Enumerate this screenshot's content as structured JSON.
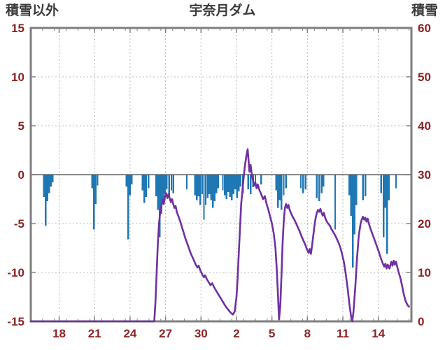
{
  "header": {
    "left_label": "積雪以外",
    "title": "宇奈月ダム",
    "right_label": "積雪"
  },
  "chart_data": {
    "type": "combo",
    "title": "宇奈月ダム",
    "legend": "none",
    "grid": true,
    "x_axis": {
      "min": 0,
      "max": 32.2,
      "tick_positions": [
        2.4,
        5.4,
        8.4,
        11.4,
        14.4,
        17.4,
        20.4,
        23.4,
        26.4,
        29.4
      ],
      "tick_labels": [
        "18",
        "21",
        "24",
        "27",
        "30",
        "2",
        "5",
        "8",
        "11",
        "14"
      ]
    },
    "left_axis": {
      "label": "積雪以外",
      "min": -15,
      "max": 15,
      "ticks": [
        15,
        10,
        5,
        0,
        -5,
        -10,
        -15
      ],
      "grid_values": [
        10,
        5,
        -5,
        -10
      ]
    },
    "right_axis": {
      "label": "積雪",
      "min": 0,
      "max": 60,
      "ticks": [
        60,
        50,
        40,
        30,
        20,
        10,
        0
      ]
    },
    "colors": {
      "bar": "#1f77b4",
      "line": "#7030a0",
      "tick_text": "#8b2323",
      "heading_text": "#3a3a3a",
      "border": "#7f7f7f",
      "grid": "#b8b8b8",
      "zero_line": "#8a8a8a",
      "background": "#ffffff"
    },
    "series": [
      {
        "name": "積雪以外",
        "type": "bar",
        "axis": "left",
        "color": "#1f77b4",
        "points": [
          [
            1.1,
            -2.3
          ],
          [
            1.25,
            -5.2
          ],
          [
            1.4,
            -2.7
          ],
          [
            1.55,
            -1.9
          ],
          [
            1.7,
            -1.2
          ],
          [
            1.85,
            -0.8
          ],
          [
            5.2,
            -1.4
          ],
          [
            5.35,
            -5.6
          ],
          [
            5.5,
            -3.0
          ],
          [
            5.65,
            -1.1
          ],
          [
            8.1,
            -1.2
          ],
          [
            8.25,
            -6.6
          ],
          [
            8.4,
            -2.1
          ],
          [
            8.55,
            -1.0
          ],
          [
            9.45,
            -1.6
          ],
          [
            9.6,
            -2.9
          ],
          [
            9.75,
            -2.3
          ],
          [
            9.95,
            -1.4
          ],
          [
            10.6,
            -2.2
          ],
          [
            10.75,
            -3.6
          ],
          [
            10.9,
            -6.4
          ],
          [
            11.05,
            -4.0
          ],
          [
            11.2,
            -2.6
          ],
          [
            11.35,
            -2.0
          ],
          [
            11.5,
            -1.5
          ],
          [
            11.7,
            -2.3
          ],
          [
            11.9,
            -1.6
          ],
          [
            12.05,
            -1.9
          ],
          [
            13.2,
            -1.5
          ],
          [
            13.9,
            -2.1
          ],
          [
            14.05,
            -2.6
          ],
          [
            14.2,
            -2.2
          ],
          [
            14.35,
            -3.1
          ],
          [
            14.5,
            -2.0
          ],
          [
            14.65,
            -4.6
          ],
          [
            14.8,
            -3.1
          ],
          [
            14.95,
            -2.4
          ],
          [
            15.1,
            -2.0
          ],
          [
            15.25,
            -2.6
          ],
          [
            15.4,
            -3.4
          ],
          [
            15.55,
            -2.7
          ],
          [
            15.7,
            -1.9
          ],
          [
            15.85,
            -1.4
          ],
          [
            16.25,
            -1.6
          ],
          [
            16.4,
            -2.1
          ],
          [
            16.55,
            -2.5
          ],
          [
            16.7,
            -1.8
          ],
          [
            16.85,
            -2.3
          ],
          [
            17.0,
            -2.6
          ],
          [
            17.15,
            -2.0
          ],
          [
            17.3,
            -1.5
          ],
          [
            17.45,
            -2.4
          ],
          [
            17.6,
            -1.7
          ],
          [
            17.75,
            -1.2
          ],
          [
            17.95,
            -1.9
          ],
          [
            18.4,
            -1.5
          ],
          [
            18.6,
            -2.0
          ],
          [
            18.8,
            -1.3
          ],
          [
            19.0,
            -0.9
          ],
          [
            19.5,
            -1.0
          ],
          [
            20.75,
            -1.6
          ],
          [
            20.9,
            -3.4
          ],
          [
            21.05,
            -2.6
          ],
          [
            21.2,
            -3.6
          ],
          [
            21.4,
            -2.1
          ],
          [
            21.6,
            -1.4
          ],
          [
            22.85,
            -1.4
          ],
          [
            23.05,
            -1.9
          ],
          [
            23.25,
            -1.5
          ],
          [
            24.2,
            -2.4
          ],
          [
            24.4,
            -2.7
          ],
          [
            24.6,
            -1.9
          ],
          [
            24.75,
            -1.2
          ],
          [
            25.75,
            -5.6
          ],
          [
            26.95,
            -2.1
          ],
          [
            27.1,
            -4.2
          ],
          [
            27.25,
            -9.5
          ],
          [
            27.4,
            -6.1
          ],
          [
            27.55,
            -3.1
          ],
          [
            28.1,
            -2.6
          ],
          [
            28.3,
            -2.2
          ],
          [
            29.65,
            -1.9
          ],
          [
            29.85,
            -6.4
          ],
          [
            30.0,
            -3.4
          ],
          [
            30.15,
            -8.1
          ],
          [
            30.3,
            -2.6
          ],
          [
            30.9,
            -1.4
          ]
        ]
      },
      {
        "name": "積雪",
        "type": "line",
        "axis": "right",
        "color": "#7030a0",
        "points": [
          [
            0,
            0
          ],
          [
            10.45,
            0
          ],
          [
            10.55,
            4
          ],
          [
            10.65,
            10
          ],
          [
            10.75,
            16
          ],
          [
            10.85,
            20
          ],
          [
            10.95,
            22.4
          ],
          [
            11.05,
            23.6
          ],
          [
            11.15,
            24.8
          ],
          [
            11.25,
            24
          ],
          [
            11.35,
            25.6
          ],
          [
            11.45,
            26.2
          ],
          [
            11.55,
            25.2
          ],
          [
            11.65,
            26
          ],
          [
            11.75,
            25.2
          ],
          [
            11.85,
            24.4
          ],
          [
            11.95,
            25
          ],
          [
            12.05,
            24
          ],
          [
            12.15,
            23.2
          ],
          [
            12.25,
            23.6
          ],
          [
            12.35,
            22.4
          ],
          [
            12.5,
            21.4
          ],
          [
            12.65,
            20.4
          ],
          [
            12.8,
            19.2
          ],
          [
            12.95,
            18
          ],
          [
            13.1,
            16.8
          ],
          [
            13.25,
            15.8
          ],
          [
            13.4,
            14.8
          ],
          [
            13.55,
            13.8
          ],
          [
            13.7,
            13
          ],
          [
            13.85,
            12.2
          ],
          [
            13.95,
            11.6
          ],
          [
            14.1,
            11
          ],
          [
            14.2,
            11.4
          ],
          [
            14.35,
            10.4
          ],
          [
            14.5,
            9.6
          ],
          [
            14.65,
            9
          ],
          [
            14.75,
            9.4
          ],
          [
            14.9,
            8.6
          ],
          [
            15.05,
            8
          ],
          [
            15.2,
            7.4
          ],
          [
            15.35,
            7.8
          ],
          [
            15.5,
            7
          ],
          [
            15.7,
            6.2
          ],
          [
            15.9,
            5.4
          ],
          [
            16.1,
            4.6
          ],
          [
            16.3,
            3.8
          ],
          [
            16.5,
            3
          ],
          [
            16.7,
            2.4
          ],
          [
            16.9,
            1.8
          ],
          [
            17.1,
            1.4
          ],
          [
            17.25,
            2
          ],
          [
            17.4,
            5
          ],
          [
            17.5,
            9
          ],
          [
            17.6,
            14
          ],
          [
            17.7,
            19
          ],
          [
            17.8,
            24
          ],
          [
            17.95,
            28
          ],
          [
            18.1,
            31.6
          ],
          [
            18.25,
            34
          ],
          [
            18.35,
            35.2
          ],
          [
            18.45,
            32
          ],
          [
            18.5,
            30.6
          ],
          [
            18.6,
            32
          ],
          [
            18.7,
            30
          ],
          [
            18.8,
            28.8
          ],
          [
            18.9,
            27.8
          ],
          [
            19.0,
            28.4
          ],
          [
            19.1,
            27.2
          ],
          [
            19.2,
            28
          ],
          [
            19.35,
            26.8
          ],
          [
            19.5,
            26
          ],
          [
            19.65,
            25
          ],
          [
            19.8,
            25.6
          ],
          [
            19.95,
            24
          ],
          [
            20.1,
            22.8
          ],
          [
            20.25,
            21.4
          ],
          [
            20.4,
            20
          ],
          [
            20.55,
            18
          ],
          [
            20.7,
            15
          ],
          [
            20.8,
            11
          ],
          [
            20.9,
            6
          ],
          [
            21.0,
            0.4
          ],
          [
            21.1,
            3
          ],
          [
            21.2,
            9
          ],
          [
            21.3,
            16
          ],
          [
            21.4,
            20.4
          ],
          [
            21.5,
            23.2
          ],
          [
            21.6,
            24
          ],
          [
            21.7,
            23.2
          ],
          [
            21.8,
            23.8
          ],
          [
            21.9,
            22.8
          ],
          [
            22.0,
            22.2
          ],
          [
            22.15,
            21.4
          ],
          [
            22.3,
            20.8
          ],
          [
            22.45,
            20
          ],
          [
            22.6,
            19.2
          ],
          [
            22.75,
            18.4
          ],
          [
            22.9,
            17.4
          ],
          [
            23.05,
            16.6
          ],
          [
            23.2,
            15.8
          ],
          [
            23.35,
            14.8
          ],
          [
            23.5,
            14
          ],
          [
            23.6,
            14.8
          ],
          [
            23.7,
            13.8
          ],
          [
            23.8,
            15.6
          ],
          [
            23.9,
            17.6
          ],
          [
            24.0,
            19.6
          ],
          [
            24.1,
            21.2
          ],
          [
            24.2,
            22.2
          ],
          [
            24.3,
            22.8
          ],
          [
            24.4,
            22.4
          ],
          [
            24.5,
            23
          ],
          [
            24.6,
            22.2
          ],
          [
            24.7,
            21.6
          ],
          [
            24.8,
            22.2
          ],
          [
            24.9,
            21.2
          ],
          [
            25.0,
            20.6
          ],
          [
            25.15,
            20
          ],
          [
            25.3,
            19.6
          ],
          [
            25.45,
            18.8
          ],
          [
            25.6,
            18.2
          ],
          [
            25.75,
            17.6
          ],
          [
            25.9,
            16.8
          ],
          [
            26.05,
            16
          ],
          [
            26.2,
            15
          ],
          [
            26.35,
            13.6
          ],
          [
            26.5,
            12
          ],
          [
            26.65,
            9.6
          ],
          [
            26.8,
            6.8
          ],
          [
            26.95,
            3.6
          ],
          [
            27.1,
            1
          ],
          [
            27.2,
            0
          ],
          [
            27.3,
            2
          ],
          [
            27.45,
            7
          ],
          [
            27.6,
            13
          ],
          [
            27.75,
            17.6
          ],
          [
            27.9,
            20
          ],
          [
            28.0,
            20.8
          ],
          [
            28.1,
            21.4
          ],
          [
            28.2,
            20.8
          ],
          [
            28.3,
            21.2
          ],
          [
            28.4,
            20.4
          ],
          [
            28.5,
            21
          ],
          [
            28.6,
            20
          ],
          [
            28.7,
            19.2
          ],
          [
            28.85,
            18.2
          ],
          [
            29.0,
            17.2
          ],
          [
            29.15,
            16.2
          ],
          [
            29.3,
            15.2
          ],
          [
            29.45,
            14.2
          ],
          [
            29.6,
            13
          ],
          [
            29.75,
            12
          ],
          [
            29.9,
            11.2
          ],
          [
            30.0,
            11.8
          ],
          [
            30.1,
            10.8
          ],
          [
            30.2,
            11.6
          ],
          [
            30.35,
            10.8
          ],
          [
            30.5,
            12.2
          ],
          [
            30.6,
            11.4
          ],
          [
            30.7,
            12.4
          ],
          [
            30.8,
            11.6
          ],
          [
            30.9,
            12.2
          ],
          [
            31.0,
            11.2
          ],
          [
            31.1,
            10.2
          ],
          [
            31.25,
            9
          ],
          [
            31.4,
            7.4
          ],
          [
            31.55,
            5.6
          ],
          [
            31.7,
            4.2
          ],
          [
            31.85,
            3.4
          ],
          [
            32.0,
            3
          ]
        ]
      }
    ]
  }
}
